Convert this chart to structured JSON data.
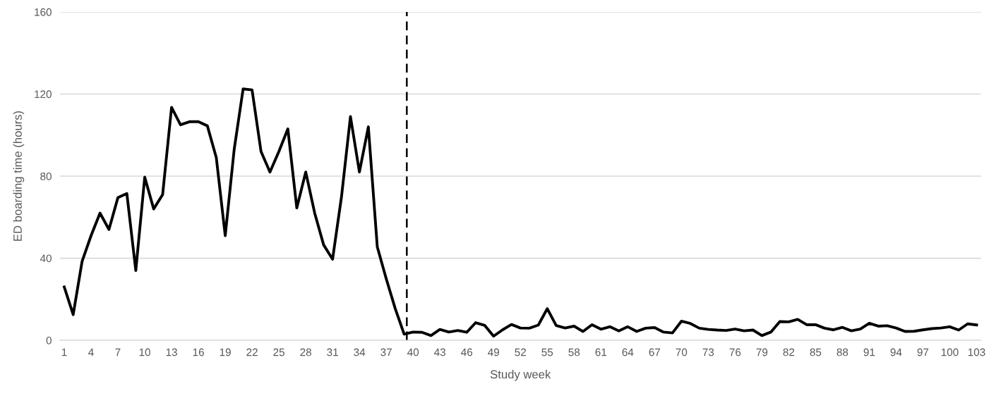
{
  "chart_data": {
    "type": "line",
    "xlabel": "Study week",
    "ylabel": "ED boarding time (hours)",
    "x": [
      1,
      2,
      3,
      4,
      5,
      6,
      7,
      8,
      9,
      10,
      11,
      12,
      13,
      14,
      15,
      16,
      17,
      18,
      19,
      20,
      21,
      22,
      23,
      24,
      25,
      26,
      27,
      28,
      29,
      30,
      31,
      32,
      33,
      34,
      35,
      36,
      37,
      38,
      39,
      40,
      41,
      42,
      43,
      44,
      45,
      46,
      47,
      48,
      49,
      50,
      51,
      52,
      53,
      54,
      55,
      56,
      57,
      58,
      59,
      60,
      61,
      62,
      63,
      64,
      65,
      66,
      67,
      68,
      69,
      70,
      71,
      72,
      73,
      74,
      75,
      76,
      77,
      78,
      79,
      80,
      81,
      82,
      83,
      84,
      85,
      86,
      87,
      88,
      89,
      90,
      91,
      92,
      93,
      94,
      95,
      96,
      97,
      98,
      99,
      100,
      101,
      102,
      103
    ],
    "series": [
      {
        "color": "#000000",
        "values": [
          26,
          12.5,
          38.5,
          51,
          62,
          54,
          69.5,
          71.5,
          34,
          79.5,
          64,
          71,
          113.5,
          105,
          106.5,
          106.5,
          104.5,
          89,
          51,
          93,
          122.5,
          122,
          92,
          82,
          92,
          103,
          64.5,
          82,
          62,
          46.5,
          39.5,
          70,
          109,
          82,
          104,
          45.5,
          30,
          15.5,
          3,
          4,
          3.9,
          2.3,
          5.3,
          4,
          4.8,
          3.9,
          8.6,
          7.3,
          2,
          5.1,
          7.7,
          6,
          5.9,
          7.4,
          15.4,
          7.2,
          6,
          6.9,
          4.3,
          7.6,
          5.4,
          6.6,
          4.6,
          6.6,
          4.3,
          5.9,
          6.2,
          4,
          3.6,
          9.3,
          8.2,
          5.9,
          5.3,
          5,
          4.8,
          5.5,
          4.6,
          5,
          2.3,
          4,
          9.1,
          9,
          10.2,
          7.6,
          7.6,
          5.9,
          5.1,
          6.3,
          4.6,
          5.5,
          8.3,
          6.9,
          7.1,
          6,
          4.3,
          4.4,
          5.1,
          5.7,
          6,
          6.6,
          5,
          8,
          7.5
        ]
      }
    ],
    "xlim": [
      0.5,
      103.5
    ],
    "xticks": [
      1,
      4,
      7,
      10,
      13,
      16,
      19,
      22,
      25,
      28,
      31,
      34,
      37,
      40,
      43,
      46,
      49,
      52,
      55,
      58,
      61,
      64,
      67,
      70,
      73,
      76,
      79,
      82,
      85,
      88,
      91,
      94,
      97,
      100,
      103
    ],
    "ylim": [
      0,
      160
    ],
    "yticks": [
      0,
      40,
      80,
      120,
      160
    ],
    "grid": "y",
    "legend": false,
    "ref_lines": [
      {
        "axis": "x",
        "value": 39.3,
        "color": "#000000",
        "line_style": "dashed"
      }
    ]
  }
}
